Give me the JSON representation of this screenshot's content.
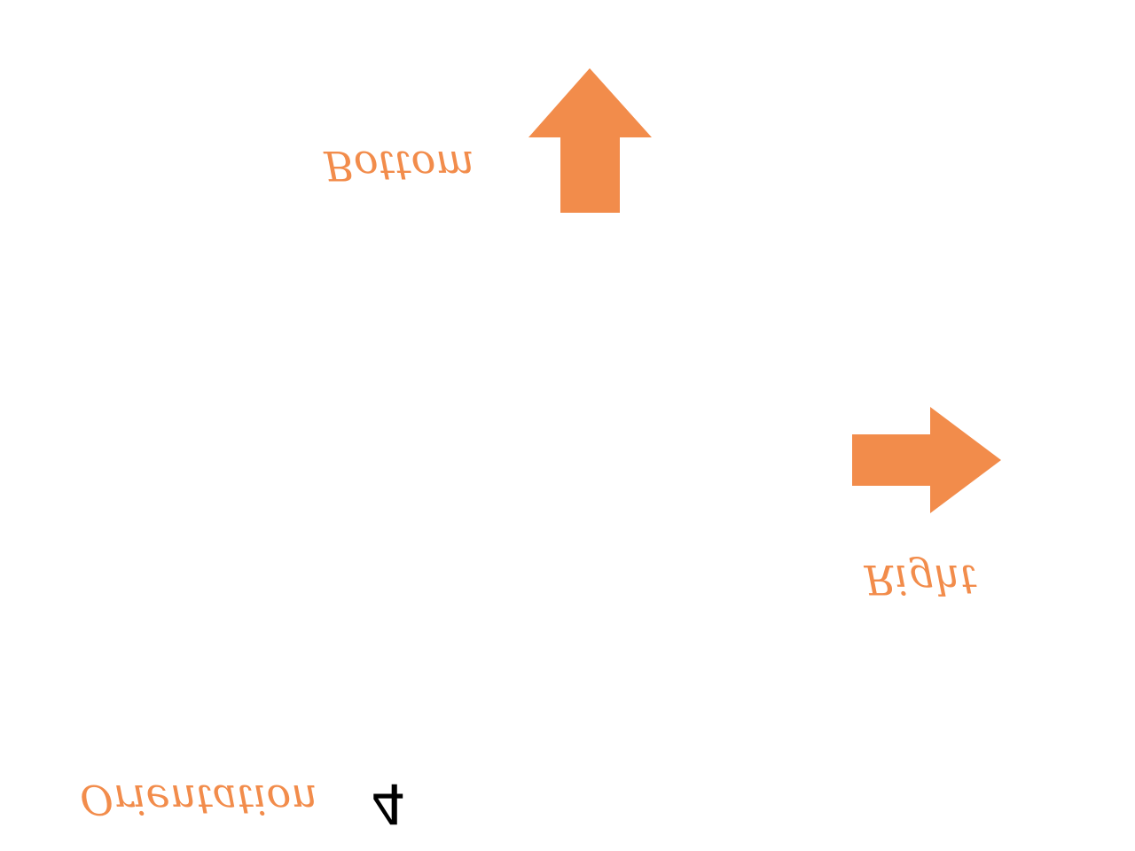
{
  "labels": {
    "bottom": "Bottom",
    "right": "Right",
    "orientation": "Orientation",
    "number": "4"
  },
  "colors": {
    "accent": "#F28C4B",
    "text_dark": "#000000",
    "background": "#FFFFFF"
  },
  "icons": {
    "up_arrow": "up-arrow-icon",
    "right_arrow": "right-arrow-icon"
  }
}
